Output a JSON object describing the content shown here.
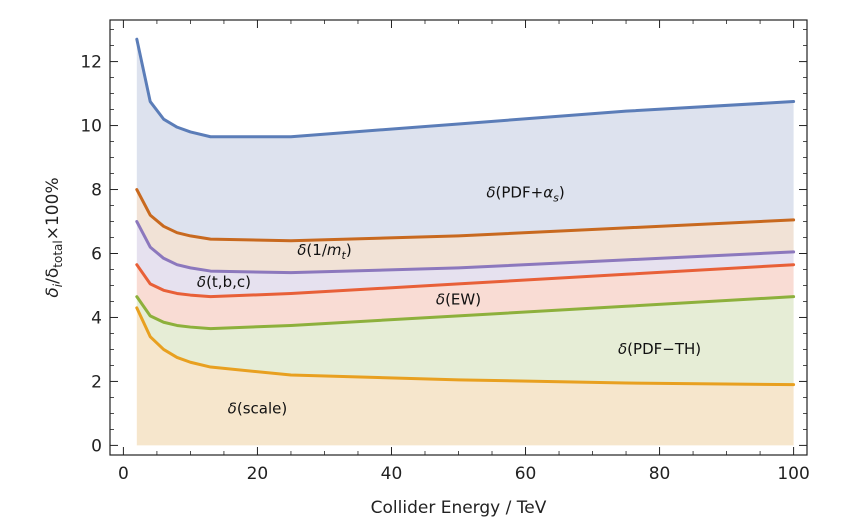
{
  "chart_data": {
    "type": "area",
    "xlabel": "Collider Energy / TeV",
    "ylabel": {
      "a": "δ",
      "a_sub": "i",
      "b": "/δ",
      "b_sub": "total",
      "c": "×100%"
    },
    "xlim": [
      -2,
      102
    ],
    "ylim": [
      -0.3,
      13.3
    ],
    "x_ticks": [
      0,
      20,
      40,
      60,
      80,
      100
    ],
    "y_ticks": [
      0,
      2,
      4,
      6,
      8,
      10,
      12
    ],
    "grid": false,
    "x": [
      2,
      4,
      6,
      8,
      10,
      13,
      25,
      50,
      75,
      100
    ],
    "series": [
      {
        "name": "δ(scale)",
        "color": "#E8A020",
        "fill": "#F6E6CC",
        "values": [
          4.3,
          3.4,
          3.0,
          2.75,
          2.6,
          2.45,
          2.2,
          2.05,
          1.95,
          1.9
        ]
      },
      {
        "name": "δ(PDF−TH)",
        "color": "#8DB03C",
        "fill": "#E6EDD6",
        "values": [
          4.65,
          4.05,
          3.85,
          3.75,
          3.7,
          3.65,
          3.75,
          4.05,
          4.35,
          4.65
        ]
      },
      {
        "name": "δ(EW)",
        "color": "#E86038",
        "fill": "#F9DCD4",
        "values": [
          5.65,
          5.05,
          4.85,
          4.75,
          4.7,
          4.65,
          4.75,
          5.05,
          5.35,
          5.65
        ]
      },
      {
        "name": "δ(t,b,c)",
        "color": "#8C78BD",
        "fill": "#E6E1EF",
        "values": [
          7.0,
          6.2,
          5.85,
          5.65,
          5.55,
          5.45,
          5.4,
          5.55,
          5.8,
          6.05
        ]
      },
      {
        "name": "δ(1/m_t)",
        "color": "#C8691F",
        "fill": "#F1E2D6",
        "values": [
          8.0,
          7.2,
          6.85,
          6.65,
          6.55,
          6.45,
          6.4,
          6.55,
          6.8,
          7.05
        ]
      },
      {
        "name": "δ(PDF+α_s)",
        "color": "#5B7DB8",
        "fill": "#DDE2EE",
        "values": [
          12.7,
          10.75,
          10.2,
          9.95,
          9.8,
          9.65,
          9.65,
          10.05,
          10.45,
          10.75
        ]
      }
    ],
    "region_labels": [
      {
        "text": "δ(scale)",
        "x": 20,
        "y": 1.0
      },
      {
        "text": "δ(PDF−TH)",
        "x": 80,
        "y": 2.85
      },
      {
        "text": "δ(EW)",
        "x": 50,
        "y": 4.4
      },
      {
        "text": "δ(t,b,c)",
        "x": 15,
        "y": 4.95
      },
      {
        "text": "δ(1/m_t)",
        "x": 30,
        "y": 5.95
      },
      {
        "text": "δ(PDF+α_s)",
        "x": 60,
        "y": 7.75
      }
    ]
  }
}
